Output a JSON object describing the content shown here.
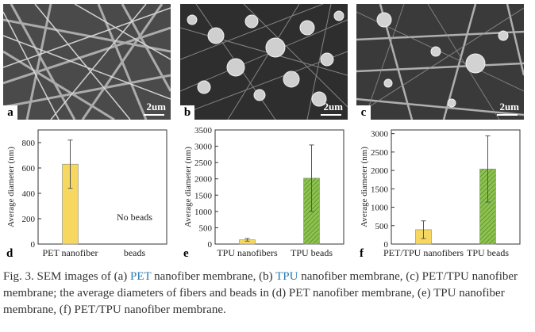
{
  "panels": {
    "a": {
      "letter": "a",
      "scale": "2um"
    },
    "b": {
      "letter": "b",
      "scale": "2um"
    },
    "c": {
      "letter": "c",
      "scale": "2um"
    }
  },
  "colors": {
    "yellow": "#f6d860",
    "green": "#8cc34f",
    "axis": "#333333",
    "caption_link": "#2a7ab5"
  },
  "chart_data": [
    {
      "type": "bar",
      "panel_letter": "d",
      "categories": [
        "PET nanofiber",
        "beads"
      ],
      "values": [
        630,
        null
      ],
      "errors": [
        190,
        null
      ],
      "ylabel": "Average diameter (nm)",
      "ylim": [
        0,
        900
      ],
      "yticks": [
        0,
        200,
        400,
        600,
        800
      ],
      "annotation": "No beads",
      "bar_styles": [
        "yellow",
        "none"
      ]
    },
    {
      "type": "bar",
      "panel_letter": "e",
      "categories": [
        "TPU nanofibers",
        "TPU beads"
      ],
      "values": [
        130,
        2020
      ],
      "errors": [
        40,
        1020
      ],
      "ylabel": "Average diameter (nm)",
      "ylim": [
        0,
        3500
      ],
      "yticks": [
        0,
        500,
        1000,
        1500,
        2000,
        2500,
        3000,
        3500
      ],
      "bar_styles": [
        "yellow",
        "green-hatch"
      ]
    },
    {
      "type": "bar",
      "panel_letter": "f",
      "categories": [
        "PET/TPU nanofibers",
        "TPU beads"
      ],
      "values": [
        390,
        2040
      ],
      "errors": [
        240,
        900
      ],
      "ylabel": "Average diameter (nm)",
      "ylim": [
        0,
        3100
      ],
      "yticks": [
        0,
        500,
        1000,
        1500,
        2000,
        2500,
        3000
      ],
      "bar_styles": [
        "yellow",
        "green-hatch"
      ]
    }
  ],
  "caption": {
    "p1": "Fig. 3. SEM images of (a) ",
    "pet": "PET",
    "p2": " nanofiber membrane, (b) ",
    "tpu": "TPU",
    "p3": " nanofiber membrane, (c) PET/TPU nanofiber membrane; the average diameters of fibers and beads in (d) PET nanofiber membrane, (e) TPU nanofiber membrane, (f) PET/TPU nanofiber membrane."
  }
}
